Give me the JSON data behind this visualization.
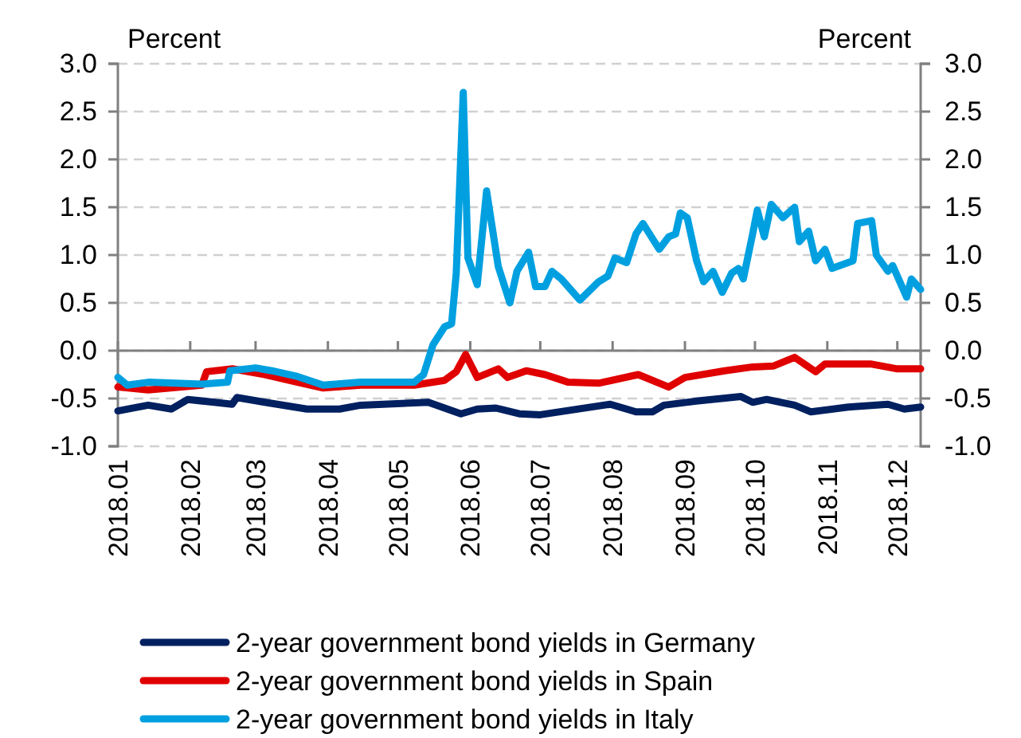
{
  "chart_data": {
    "type": "line",
    "ylabel": "Percent",
    "y2label": "Percent",
    "xlim": [
      "2018-01-01",
      "2018-12-11"
    ],
    "xticks": [
      {
        "value": "2018-01-01",
        "label": "2018.01"
      },
      {
        "value": "2018-02-01",
        "label": "2018.02"
      },
      {
        "value": "2018-03-01",
        "label": "2018.03"
      },
      {
        "value": "2018-04-01",
        "label": "2018.04"
      },
      {
        "value": "2018-05-01",
        "label": "2018.05"
      },
      {
        "value": "2018-06-01",
        "label": "2018.06"
      },
      {
        "value": "2018-07-01",
        "label": "2018.07"
      },
      {
        "value": "2018-08-01",
        "label": "2018.08"
      },
      {
        "value": "2018-09-01",
        "label": "2018.09"
      },
      {
        "value": "2018-10-01",
        "label": "2018.10"
      },
      {
        "value": "2018-11-01",
        "label": "2018.11"
      },
      {
        "value": "2018-12-01",
        "label": "2018.12"
      }
    ],
    "ylim": [
      -1,
      3
    ],
    "yticks": [
      {
        "value": -1,
        "label": "-1.0"
      },
      {
        "value": -0.5,
        "label": "-0.5"
      },
      {
        "value": 0,
        "label": "0.0"
      },
      {
        "value": 0.5,
        "label": "0.5"
      },
      {
        "value": 1,
        "label": "1.0"
      },
      {
        "value": 1.5,
        "label": "1.5"
      },
      {
        "value": 2,
        "label": "2.0"
      },
      {
        "value": 2.5,
        "label": "2.5"
      },
      {
        "value": 3,
        "label": "3.0"
      }
    ],
    "y2lim": [
      -1,
      3
    ],
    "y2ticks": [
      {
        "value": -1,
        "label": "-1.0"
      },
      {
        "value": -0.5,
        "label": "-0.5"
      },
      {
        "value": 0,
        "label": "0.0"
      },
      {
        "value": 0.5,
        "label": "0.5"
      },
      {
        "value": 1,
        "label": "1.0"
      },
      {
        "value": 1.5,
        "label": "1.5"
      },
      {
        "value": 2,
        "label": "2.0"
      },
      {
        "value": 2.5,
        "label": "2.5"
      },
      {
        "value": 3,
        "label": "3.0"
      }
    ],
    "grid": "y",
    "legend": "bottom",
    "marker": "none",
    "line_style": "solid",
    "series": [
      {
        "name": "2-year government bond yields in Germany",
        "color": "#002060",
        "x": [
          "2018-01-01",
          "2018-01-14",
          "2018-01-24",
          "2018-01-31",
          "2018-02-19",
          "2018-02-21",
          "2018-03-05",
          "2018-03-23",
          "2018-04-06",
          "2018-04-15",
          "2018-05-14",
          "2018-05-28",
          "2018-06-04",
          "2018-06-12",
          "2018-06-22",
          "2018-07-01",
          "2018-07-31",
          "2018-08-11",
          "2018-08-18",
          "2018-08-23",
          "2018-09-05",
          "2018-09-25",
          "2018-09-30",
          "2018-10-06",
          "2018-10-18",
          "2018-10-25",
          "2018-11-10",
          "2018-11-27",
          "2018-12-04",
          "2018-12-11"
        ],
        "values": [
          -0.63,
          -0.57,
          -0.61,
          -0.51,
          -0.56,
          -0.49,
          -0.54,
          -0.61,
          -0.61,
          -0.57,
          -0.54,
          -0.66,
          -0.61,
          -0.6,
          -0.66,
          -0.67,
          -0.56,
          -0.64,
          -0.64,
          -0.57,
          -0.53,
          -0.48,
          -0.54,
          -0.51,
          -0.57,
          -0.64,
          -0.59,
          -0.56,
          -0.61,
          -0.59
        ]
      },
      {
        "name": "2-year government bond yields in Spain",
        "color": "#e00000",
        "x": [
          "2018-01-01",
          "2018-01-14",
          "2018-02-06",
          "2018-02-08",
          "2018-02-19",
          "2018-03-05",
          "2018-03-19",
          "2018-03-30",
          "2018-04-15",
          "2018-05-08",
          "2018-05-21",
          "2018-05-26",
          "2018-05-30",
          "2018-06-04",
          "2018-06-13",
          "2018-06-17",
          "2018-06-25",
          "2018-07-03",
          "2018-07-13",
          "2018-07-26",
          "2018-08-12",
          "2018-08-25",
          "2018-09-01",
          "2018-09-18",
          "2018-09-30",
          "2018-10-09",
          "2018-10-18",
          "2018-10-27",
          "2018-10-31",
          "2018-11-20",
          "2018-12-01",
          "2018-12-11"
        ],
        "values": [
          -0.38,
          -0.41,
          -0.36,
          -0.22,
          -0.19,
          -0.25,
          -0.33,
          -0.39,
          -0.36,
          -0.36,
          -0.31,
          -0.22,
          -0.04,
          -0.28,
          -0.19,
          -0.28,
          -0.21,
          -0.25,
          -0.33,
          -0.34,
          -0.25,
          -0.38,
          -0.28,
          -0.21,
          -0.17,
          -0.16,
          -0.07,
          -0.22,
          -0.14,
          -0.14,
          -0.19,
          -0.19
        ]
      },
      {
        "name": "2-year government bond yields in Italy",
        "color": "#00a0e0",
        "x": [
          "2018-01-01",
          "2018-01-05",
          "2018-01-14",
          "2018-02-06",
          "2018-02-17",
          "2018-02-18",
          "2018-03-01",
          "2018-03-08",
          "2018-03-19",
          "2018-03-30",
          "2018-04-15",
          "2018-05-08",
          "2018-05-12",
          "2018-05-16",
          "2018-05-21",
          "2018-05-24",
          "2018-05-26",
          "2018-05-29",
          "2018-05-31",
          "2018-06-04",
          "2018-06-08",
          "2018-06-13",
          "2018-06-18",
          "2018-06-21",
          "2018-06-26",
          "2018-06-29",
          "2018-07-03",
          "2018-07-06",
          "2018-07-10",
          "2018-07-18",
          "2018-07-26",
          "2018-07-30",
          "2018-08-02",
          "2018-08-07",
          "2018-08-11",
          "2018-08-14",
          "2018-08-21",
          "2018-08-25",
          "2018-08-28",
          "2018-08-30",
          "2018-09-02",
          "2018-09-06",
          "2018-09-09",
          "2018-09-13",
          "2018-09-17",
          "2018-09-21",
          "2018-09-24",
          "2018-09-26",
          "2018-09-30",
          "2018-10-02",
          "2018-10-05",
          "2018-10-08",
          "2018-10-13",
          "2018-10-18",
          "2018-10-20",
          "2018-10-24",
          "2018-10-27",
          "2018-10-31",
          "2018-11-03",
          "2018-11-12",
          "2018-11-14",
          "2018-11-20",
          "2018-11-22",
          "2018-11-27",
          "2018-11-29",
          "2018-12-05",
          "2018-12-07",
          "2018-12-11"
        ],
        "values": [
          -0.28,
          -0.36,
          -0.33,
          -0.35,
          -0.33,
          -0.21,
          -0.18,
          -0.21,
          -0.27,
          -0.36,
          -0.33,
          -0.33,
          -0.25,
          0.06,
          0.25,
          0.28,
          0.81,
          2.7,
          0.97,
          0.69,
          1.67,
          0.88,
          0.5,
          0.83,
          1.03,
          0.67,
          0.67,
          0.83,
          0.75,
          0.53,
          0.72,
          0.78,
          0.97,
          0.92,
          1.22,
          1.33,
          1.06,
          1.19,
          1.22,
          1.44,
          1.39,
          0.94,
          0.72,
          0.83,
          0.61,
          0.81,
          0.86,
          0.75,
          1.22,
          1.47,
          1.19,
          1.53,
          1.39,
          1.5,
          1.14,
          1.25,
          0.94,
          1.06,
          0.86,
          0.94,
          1.33,
          1.36,
          1.0,
          0.83,
          0.89,
          0.56,
          0.75,
          0.64
        ]
      }
    ]
  }
}
